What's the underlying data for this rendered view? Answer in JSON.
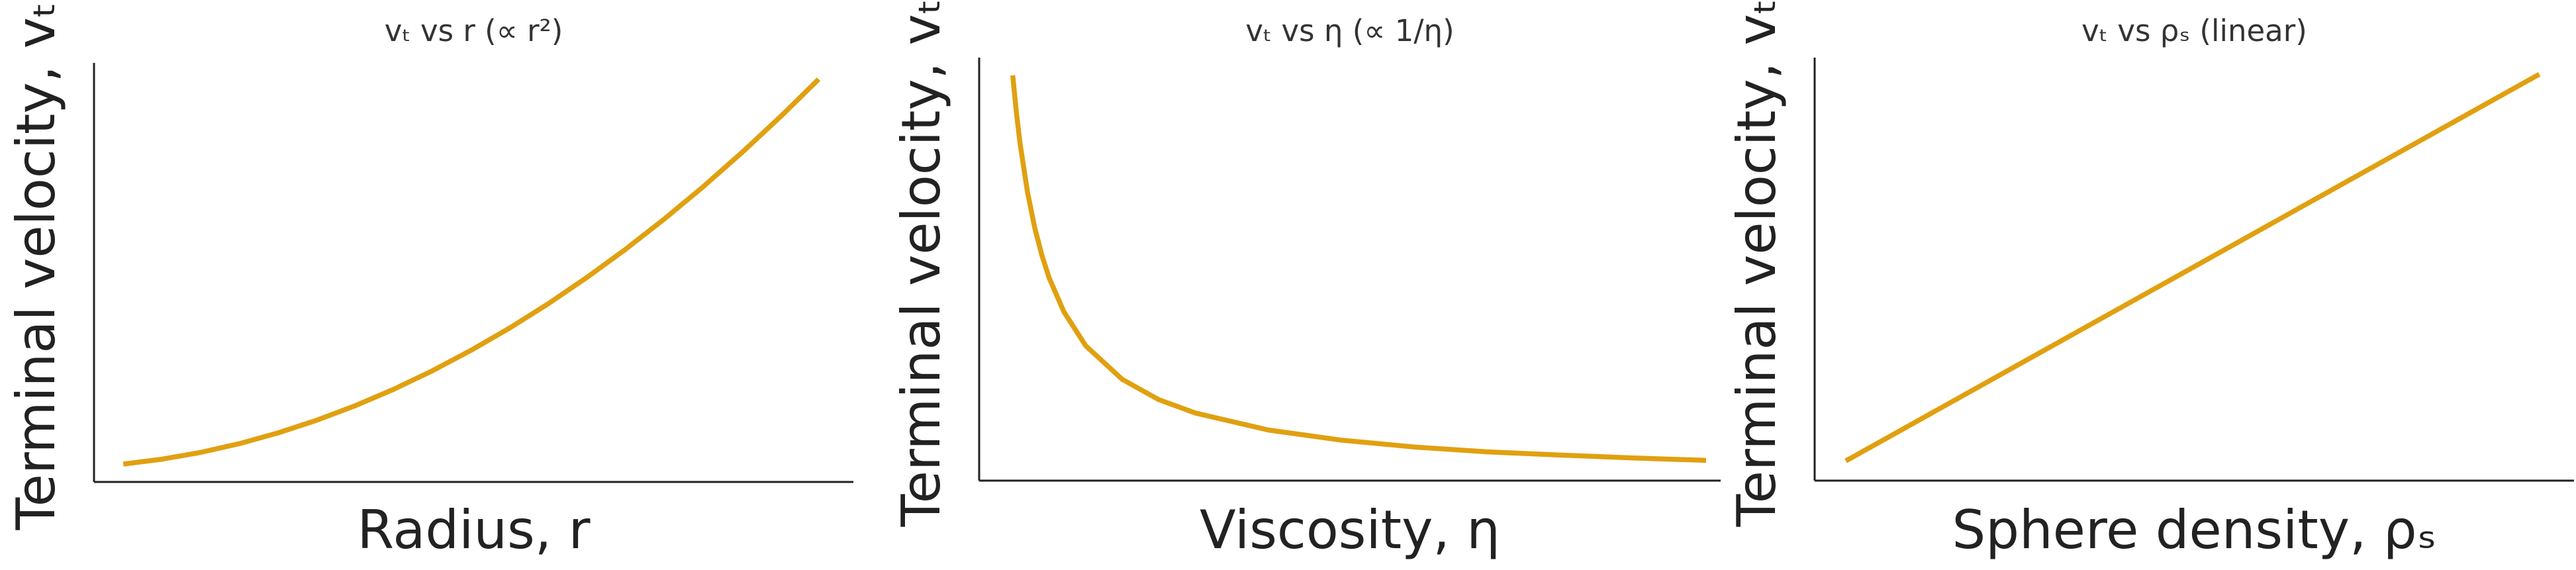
{
  "chart_data": [
    {
      "type": "line",
      "title": "vₜ vs r  (∝ r²)",
      "x_label": "Radius, r",
      "y_label": "Terminal velocity, vₜ",
      "x": [
        0.1,
        0.15,
        0.2,
        0.25,
        0.3,
        0.35,
        0.4,
        0.45,
        0.5,
        0.55,
        0.6,
        0.65,
        0.7,
        0.75,
        0.8,
        0.85,
        0.9,
        0.95,
        1.0
      ],
      "series": [
        {
          "name": "vₜ",
          "color": "#e0a010",
          "values": [
            0.01,
            0.0225,
            0.04,
            0.0625,
            0.09,
            0.1225,
            0.16,
            0.2025,
            0.25,
            0.3025,
            0.36,
            0.4225,
            0.49,
            0.5625,
            0.64,
            0.7225,
            0.81,
            0.9025,
            1.0
          ]
        }
      ],
      "xlim": [
        0.062,
        1.045
      ],
      "ylim": [
        -0.036,
        1.042
      ],
      "grid": false
    },
    {
      "type": "line",
      "title": "vₜ vs η  (∝ 1/η)",
      "x_label": "Viscosity, η",
      "y_label": "Terminal velocity, vₜ",
      "x": [
        0.05,
        0.055,
        0.06,
        0.07,
        0.08,
        0.09,
        0.1,
        0.12,
        0.15,
        0.2,
        0.25,
        0.3,
        0.4,
        0.5,
        0.6,
        0.7,
        0.8,
        0.9,
        1.0
      ],
      "series": [
        {
          "name": "vₜ",
          "color": "#e0a010",
          "values": [
            1.0,
            0.909,
            0.833,
            0.714,
            0.625,
            0.556,
            0.5,
            0.417,
            0.333,
            0.25,
            0.2,
            0.167,
            0.125,
            0.1,
            0.083,
            0.071,
            0.063,
            0.056,
            0.05
          ]
        }
      ],
      "xlim": [
        0.004,
        1.02
      ],
      "ylim": [
        0,
        1.044
      ],
      "grid": false
    },
    {
      "type": "line",
      "title": "vₜ vs ρₛ  (linear)",
      "x_label": "Sphere density, ρₛ",
      "y_label": "Terminal velocity, vₜ",
      "x": [
        0,
        0.25,
        0.5,
        0.75,
        1.0
      ],
      "series": [
        {
          "name": "vₜ",
          "color": "#e0a010",
          "values": [
            0,
            0.25,
            0.5,
            0.75,
            1.0
          ]
        }
      ],
      "xlim": [
        -0.045,
        1.05
      ],
      "ylim": [
        -0.051,
        1.043
      ],
      "grid": false
    }
  ]
}
